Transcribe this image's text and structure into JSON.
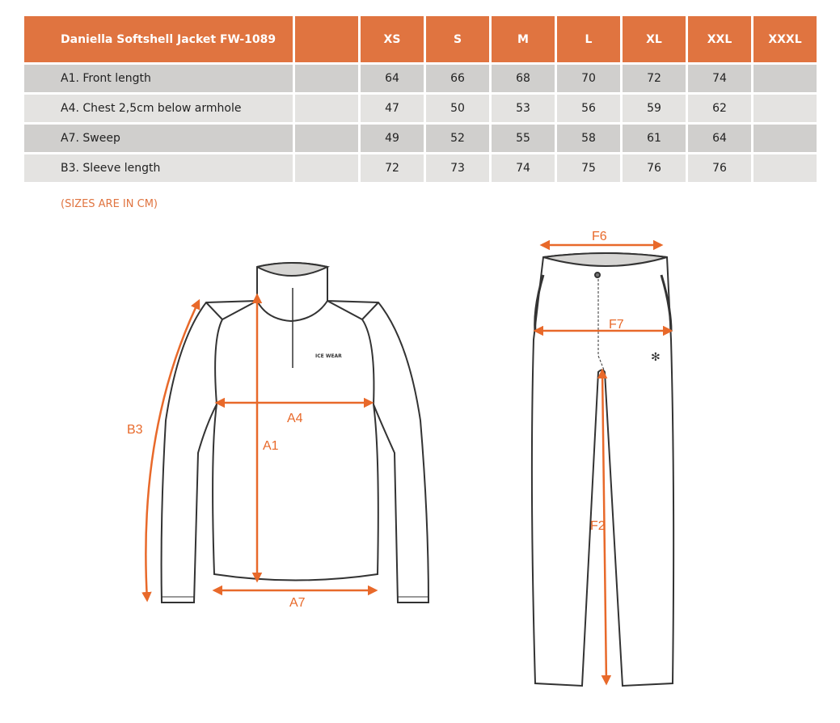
{
  "table": {
    "title": "Daniella Softshell Jacket FW-1089",
    "sizes": [
      "XS",
      "S",
      "M",
      "L",
      "XL",
      "XXL",
      "XXXL"
    ],
    "rows": [
      {
        "label": "A1. Front length",
        "values": [
          "64",
          "66",
          "68",
          "70",
          "72",
          "74",
          ""
        ]
      },
      {
        "label": "A4. Chest 2,5cm below armhole",
        "values": [
          "47",
          "50",
          "53",
          "56",
          "59",
          "62",
          ""
        ]
      },
      {
        "label": "A7. Sweep",
        "values": [
          "49",
          "52",
          "55",
          "58",
          "61",
          "64",
          ""
        ]
      },
      {
        "label": "B3. Sleeve length",
        "values": [
          "72",
          "73",
          "74",
          "75",
          "76",
          "76",
          ""
        ]
      }
    ]
  },
  "note": "(SIZES ARE IN CM)",
  "jacket_labels": {
    "a1": "A1",
    "a4": "A4",
    "a7": "A7",
    "b3": "B3"
  },
  "pants_labels": {
    "f6": "F6",
    "f7": "F7",
    "f2": "F2"
  },
  "logo": "ICE WEAR",
  "colors": {
    "accent": "#E07440",
    "row_dark": "#D0CFCD",
    "row_light": "#E4E3E1",
    "arrow": "#E8692A"
  }
}
